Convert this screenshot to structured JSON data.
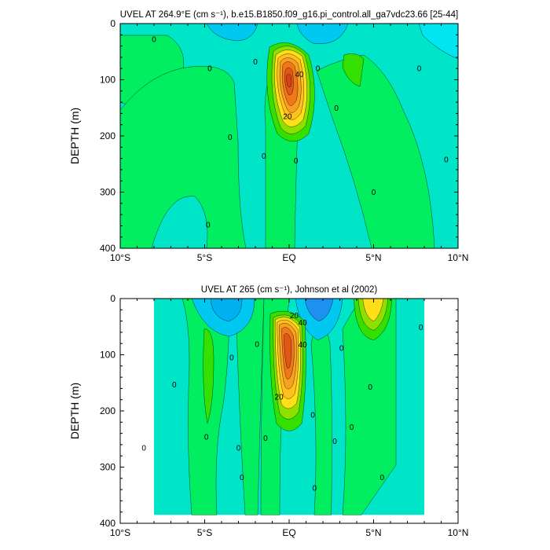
{
  "chart_data": [
    {
      "type": "contour",
      "title": "UVEL AT 264.9°E (cm s⁻¹), b.e15.B1850.f09_g16.pi_control.all_ga7vdc23.66 [25-44]",
      "ylabel": "DEPTH (m)",
      "xlabel": "",
      "xlim": [
        -10,
        10
      ],
      "ylim": [
        400,
        0
      ],
      "x_ticks": [
        -10,
        -5,
        0,
        5,
        10
      ],
      "x_tick_labels": [
        "10°S",
        "5°S",
        "EQ",
        "5°N",
        "10°N"
      ],
      "y_ticks": [
        0,
        100,
        200,
        300,
        400
      ],
      "y_tick_labels": [
        "0",
        "100",
        "200",
        "300",
        "400"
      ],
      "data_extent": {
        "lat": [
          -10,
          10
        ],
        "depth": [
          0,
          400
        ]
      },
      "background_color": "#00e5c8",
      "features": [
        {
          "kind": "jet",
          "lat": 0,
          "depth": 80,
          "peak": 55,
          "color": "#f07818"
        },
        {
          "kind": "westward_surface",
          "lat": -3,
          "depth": 10,
          "color": "#00c8f0"
        },
        {
          "kind": "westward_surface",
          "lat": 3,
          "depth": 10,
          "color": "#00c8f0"
        },
        {
          "kind": "eastward_region",
          "lat": -7,
          "depth": 200,
          "color": "#00ee60"
        },
        {
          "kind": "eastward_region",
          "lat": 6,
          "depth": 200,
          "color": "#00ee60"
        }
      ],
      "contour_labels": [
        {
          "text": "0",
          "lat": -8.0,
          "depth": 28
        },
        {
          "text": "0",
          "lat": -4.7,
          "depth": 80
        },
        {
          "text": "0",
          "lat": -3.5,
          "depth": 202
        },
        {
          "text": "0",
          "lat": -4.8,
          "depth": 358
        },
        {
          "text": "0",
          "lat": -2.0,
          "depth": 68
        },
        {
          "text": "0",
          "lat": -1.5,
          "depth": 236
        },
        {
          "text": "0",
          "lat": 0.4,
          "depth": 244
        },
        {
          "text": "0",
          "lat": 1.7,
          "depth": 80
        },
        {
          "text": "0",
          "lat": 2.8,
          "depth": 150
        },
        {
          "text": "0",
          "lat": 5.0,
          "depth": 300
        },
        {
          "text": "0",
          "lat": 7.7,
          "depth": 80
        },
        {
          "text": "0",
          "lat": 9.3,
          "depth": 242
        },
        {
          "text": "20",
          "lat": -0.1,
          "depth": 165
        },
        {
          "text": "40",
          "lat": 0.6,
          "depth": 90
        }
      ]
    },
    {
      "type": "contour",
      "title": "UVEL AT 265 (cm s⁻¹), Johnson et al (2002)",
      "ylabel": "DEPTH (m)",
      "xlabel": "",
      "xlim": [
        -10,
        10
      ],
      "ylim": [
        400,
        0
      ],
      "x_ticks": [
        -10,
        -5,
        0,
        5,
        10
      ],
      "x_tick_labels": [
        "10°S",
        "5°S",
        "EQ",
        "5°N",
        "10°N"
      ],
      "y_ticks": [
        0,
        100,
        200,
        300,
        400
      ],
      "y_tick_labels": [
        "0",
        "100",
        "200",
        "300",
        "400"
      ],
      "data_extent": {
        "lat": [
          -8,
          8
        ],
        "depth": [
          0,
          385
        ]
      },
      "background_color": "#00e5c8",
      "features": [
        {
          "kind": "jet",
          "lat": 0,
          "depth": 70,
          "peak": 55,
          "color": "#f07818"
        },
        {
          "kind": "westward_surface",
          "lat": -3,
          "depth": 10,
          "color": "#00c8f0"
        },
        {
          "kind": "westward_surface",
          "lat": 1.5,
          "depth": 20,
          "color": "#1e90f0"
        },
        {
          "kind": "eastward_surface",
          "lat": 6,
          "depth": 20,
          "color": "#ffe018"
        },
        {
          "kind": "eastward_region",
          "lat": -6,
          "depth": 200,
          "color": "#00ee60"
        },
        {
          "kind": "eastward_region",
          "lat": 5,
          "depth": 200,
          "color": "#00ee60"
        }
      ],
      "contour_labels": [
        {
          "text": "0",
          "lat": -8.6,
          "depth": 266
        },
        {
          "text": "0",
          "lat": -6.8,
          "depth": 153
        },
        {
          "text": "0",
          "lat": -4.9,
          "depth": 246
        },
        {
          "text": "0",
          "lat": -3.4,
          "depth": 105
        },
        {
          "text": "0",
          "lat": -3.0,
          "depth": 266
        },
        {
          "text": "0",
          "lat": -2.8,
          "depth": 318
        },
        {
          "text": "0",
          "lat": -1.9,
          "depth": 81
        },
        {
          "text": "0",
          "lat": -1.4,
          "depth": 248
        },
        {
          "text": "0",
          "lat": 1.4,
          "depth": 207
        },
        {
          "text": "0",
          "lat": 1.5,
          "depth": 337
        },
        {
          "text": "0",
          "lat": 3.1,
          "depth": 88
        },
        {
          "text": "0",
          "lat": 2.7,
          "depth": 254
        },
        {
          "text": "0",
          "lat": 3.7,
          "depth": 229
        },
        {
          "text": "0",
          "lat": 4.8,
          "depth": 157
        },
        {
          "text": "0",
          "lat": 5.5,
          "depth": 318
        },
        {
          "text": "0",
          "lat": 7.8,
          "depth": 51
        },
        {
          "text": "20",
          "lat": 0.3,
          "depth": 30
        },
        {
          "text": "40",
          "lat": 0.8,
          "depth": 43
        },
        {
          "text": "40",
          "lat": 0.8,
          "depth": 82
        },
        {
          "text": "20",
          "lat": -0.6,
          "depth": 175
        }
      ]
    }
  ]
}
